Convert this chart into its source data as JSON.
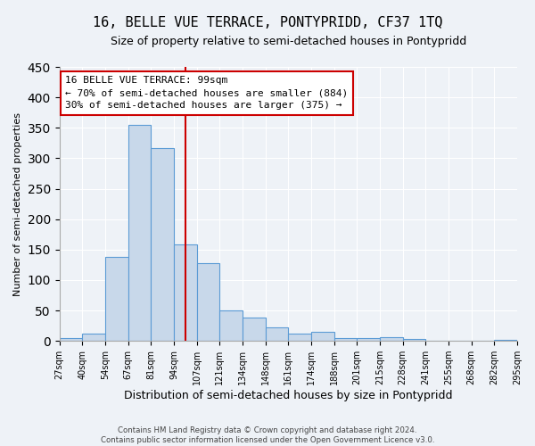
{
  "title": "16, BELLE VUE TERRACE, PONTYPRIDD, CF37 1TQ",
  "subtitle": "Size of property relative to semi-detached houses in Pontypridd",
  "bar_values": [
    5,
    12,
    138,
    355,
    317,
    158,
    128,
    50,
    38,
    22,
    12,
    15,
    4,
    5,
    6,
    3,
    1,
    1,
    0,
    2
  ],
  "bin_labels": [
    "27sqm",
    "40sqm",
    "54sqm",
    "67sqm",
    "81sqm",
    "94sqm",
    "107sqm",
    "121sqm",
    "134sqm",
    "148sqm",
    "161sqm",
    "174sqm",
    "188sqm",
    "201sqm",
    "215sqm",
    "228sqm",
    "241sqm",
    "255sqm",
    "268sqm",
    "282sqm",
    "295sqm"
  ],
  "bar_color": "#c8d8ea",
  "bar_edge_color": "#5b9bd5",
  "vline_x_index": 5.5,
  "annotation_title": "16 BELLE VUE TERRACE: 99sqm",
  "annotation_line1": "← 70% of semi-detached houses are smaller (884)",
  "annotation_line2": "30% of semi-detached houses are larger (375) →",
  "annotation_box_color": "#ffffff",
  "annotation_box_edge": "#cc0000",
  "vline_color": "#cc0000",
  "xlabel": "Distribution of semi-detached houses by size in Pontypridd",
  "ylabel": "Number of semi-detached properties",
  "ylim": [
    0,
    450
  ],
  "yticks": [
    0,
    50,
    100,
    150,
    200,
    250,
    300,
    350,
    400,
    450
  ],
  "footer1": "Contains HM Land Registry data © Crown copyright and database right 2024.",
  "footer2": "Contains public sector information licensed under the Open Government Licence v3.0.",
  "background_color": "#eef2f7",
  "grid_color": "#ffffff"
}
